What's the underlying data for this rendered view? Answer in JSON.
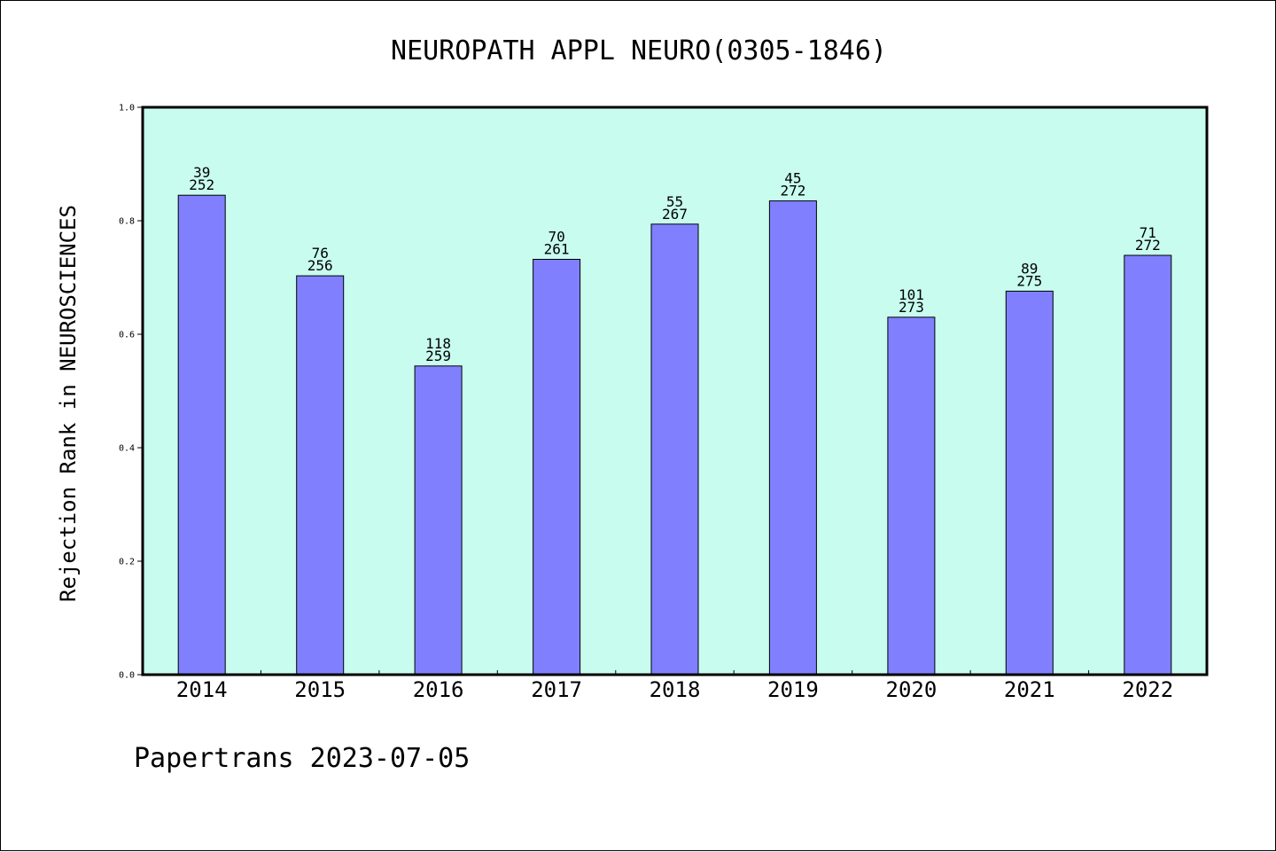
{
  "chart_data": {
    "type": "bar",
    "title": "NEUROPATH APPL NEURO(0305-1846)",
    "xlabel": "",
    "ylabel": "Rejection Rank in NEUROSCIENCES",
    "ylim": [
      0.0,
      1.0
    ],
    "yticks": [
      "0.0",
      "0.2",
      "0.4",
      "0.6",
      "0.8",
      "1.0"
    ],
    "categories": [
      "2014",
      "2015",
      "2016",
      "2017",
      "2018",
      "2019",
      "2020",
      "2021",
      "2022"
    ],
    "values": [
      0.845,
      0.703,
      0.544,
      0.732,
      0.794,
      0.835,
      0.63,
      0.676,
      0.739
    ],
    "bar_labels": [
      {
        "rank": "39",
        "total": "252"
      },
      {
        "rank": "76",
        "total": "256"
      },
      {
        "rank": "118",
        "total": "259"
      },
      {
        "rank": "70",
        "total": "261"
      },
      {
        "rank": "55",
        "total": "267"
      },
      {
        "rank": "45",
        "total": "272"
      },
      {
        "rank": "101",
        "total": "273"
      },
      {
        "rank": "89",
        "total": "275"
      },
      {
        "rank": "71",
        "total": "272"
      }
    ],
    "grid": false,
    "colors": {
      "plot_background": "#c8fcee",
      "bar_fill": "#8080ff",
      "bar_stroke": "#000000"
    }
  },
  "footer": {
    "text": "Papertrans 2023-07-05"
  }
}
